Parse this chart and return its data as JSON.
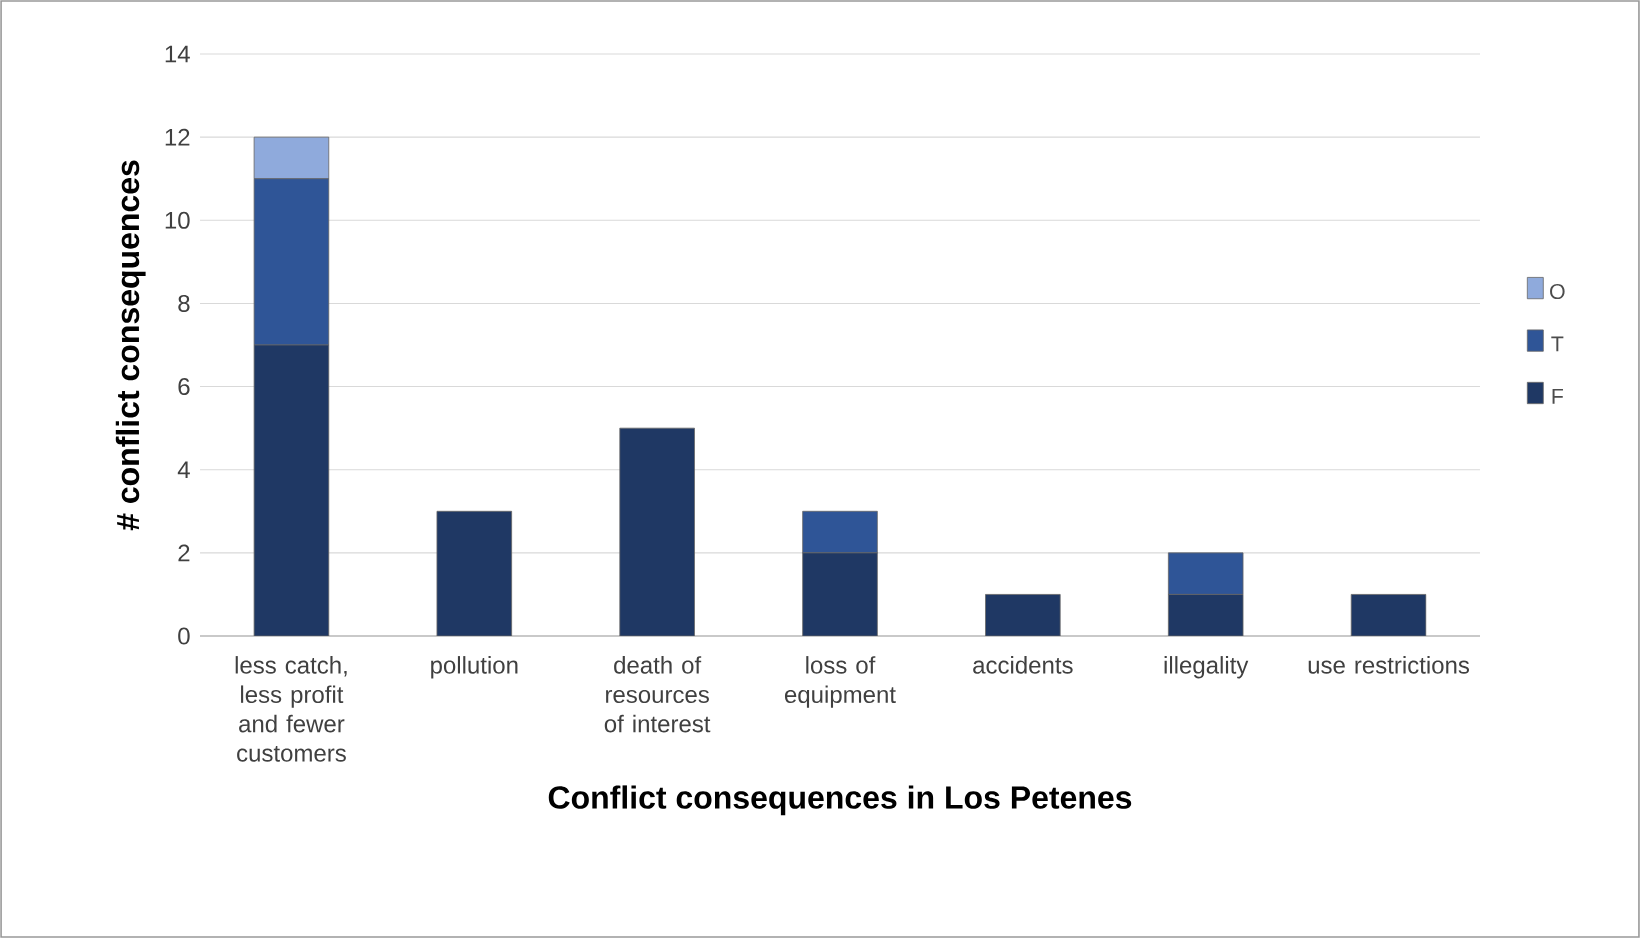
{
  "chart_data": {
    "type": "bar",
    "stacked": true,
    "xlabel": "Conflict consequences in Los Petenes",
    "ylabel": "# conflict consequences",
    "categories": [
      "less catch, less profit and fewer customers",
      "pollution",
      "death of resources of interest",
      "loss of equipment",
      "accidents",
      "illegality",
      "use restrictions"
    ],
    "series": [
      {
        "name": "F",
        "color": "#1f3864",
        "values": [
          7,
          3,
          5,
          2,
          1,
          1,
          1
        ]
      },
      {
        "name": "T",
        "color": "#2f5597",
        "values": [
          4,
          0,
          0,
          1,
          0,
          1,
          0
        ]
      },
      {
        "name": "O",
        "color": "#8faadc",
        "values": [
          1,
          0,
          0,
          0,
          0,
          0,
          0
        ]
      }
    ],
    "ylim": [
      0,
      14
    ],
    "yticks": [
      0,
      2,
      4,
      6,
      8,
      10,
      12,
      14
    ],
    "grid": "y",
    "legend": "right"
  }
}
